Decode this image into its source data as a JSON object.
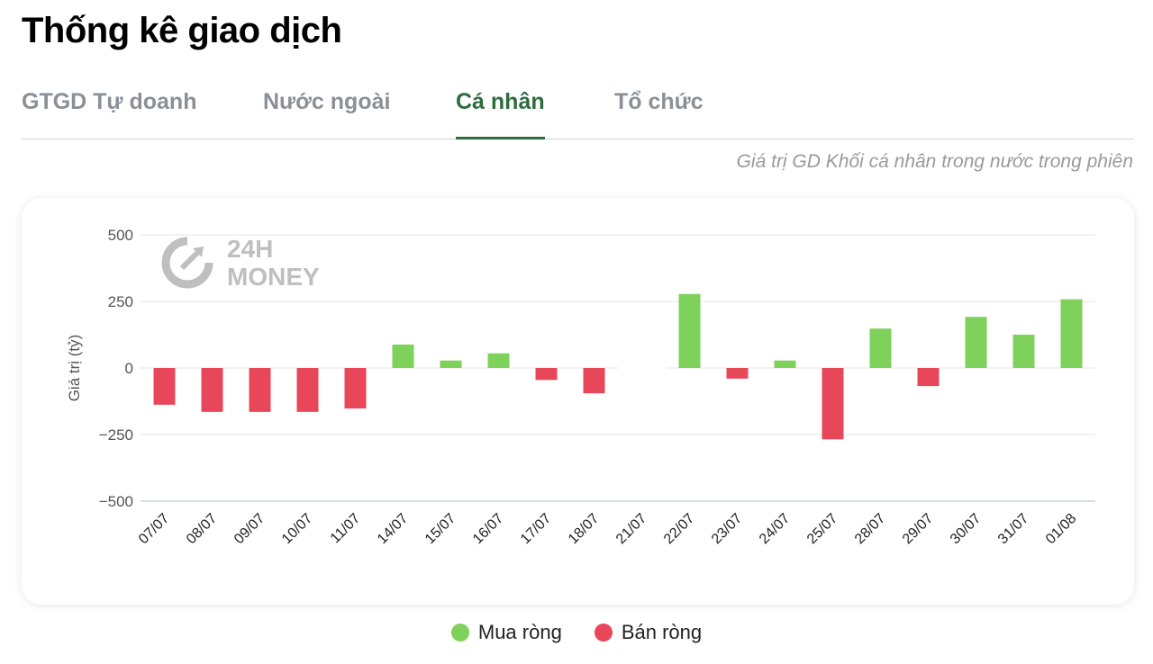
{
  "page": {
    "title": "Thống kê giao dịch"
  },
  "tabs": [
    {
      "label": "GTGD Tự doanh",
      "active": false
    },
    {
      "label": "Nước ngoài",
      "active": false
    },
    {
      "label": "Cá nhân",
      "active": true
    },
    {
      "label": "Tổ chức",
      "active": false
    }
  ],
  "subtitle": "Giá trị GD Khối cá nhân trong nước trong phiên",
  "watermark": {
    "line1": "24H",
    "line2": "MONEY"
  },
  "legend": [
    {
      "label": "Mua ròng",
      "color": "#7ed15a"
    },
    {
      "label": "Bán ròng",
      "color": "#e8475a"
    }
  ],
  "chart_data": {
    "type": "bar",
    "title": "",
    "xlabel": "",
    "ylabel": "Giá trị (tỷ)",
    "ylim": [
      -500,
      500
    ],
    "yticks": [
      500,
      250,
      0,
      -250,
      -500
    ],
    "ytick_labels": [
      "500",
      "250",
      "0",
      "−250",
      "−500"
    ],
    "categories": [
      "07/07",
      "08/07",
      "09/07",
      "10/07",
      "11/07",
      "14/07",
      "15/07",
      "16/07",
      "17/07",
      "18/07",
      "21/07",
      "22/07",
      "23/07",
      "24/07",
      "25/07",
      "28/07",
      "29/07",
      "30/07",
      "31/07",
      "01/08"
    ],
    "values": [
      -138,
      -165,
      -165,
      -165,
      -152,
      88,
      28,
      55,
      -45,
      -95,
      null,
      278,
      -40,
      28,
      -268,
      148,
      -68,
      192,
      125,
      258
    ],
    "positive_color": "#7ed15a",
    "negative_color": "#e8475a",
    "grid": true
  }
}
